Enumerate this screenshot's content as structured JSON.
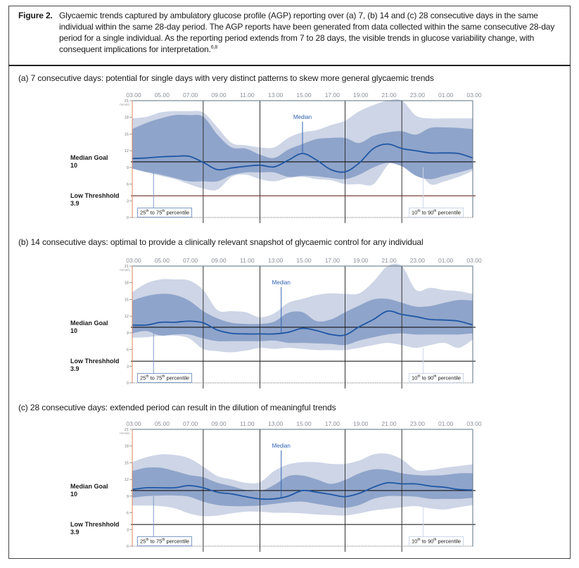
{
  "caption": {
    "label": "Figure 2.",
    "text": "Glycaemic trends captured by ambulatory glucose profile (AGP) reporting over (a) 7, (b) 14 and (c) 28 consecutive days in the same individual within the same 28-day period. The AGP reports have been generated from data collected within the same consecutive 28-day period for a single individual. As the reporting period extends from 7 to 28 days, the visible trends in glucose variability change, with consequent implications for interpretation.",
    "refs": "6,8"
  },
  "colors": {
    "band_10_90": "#cdd5e6",
    "band_25_75": "#8fa4ca",
    "median": "#1f57a4",
    "median_label": "#2f63b3",
    "left_axis": "#e0845c",
    "frame_axis": "#5a7080"
  },
  "chart_data": [
    {
      "type": "area",
      "title": "(a) 7 consecutive days: potential for single days with very distinct patterns to skew more general glycaemic trends",
      "x_ticks": [
        "03.00",
        "05.00",
        "07.00",
        "09.00",
        "11.00",
        "13.00",
        "15.00",
        "17.00",
        "19.00",
        "21.00",
        "23.00",
        "01.00",
        "03.00"
      ],
      "x": [
        "03.00",
        "04.00",
        "05.00",
        "06.00",
        "07.00",
        "08.00",
        "09.00",
        "10.00",
        "11.00",
        "12.00",
        "13.00",
        "14.00",
        "15.00",
        "16.00",
        "17.00",
        "18.00",
        "19.00",
        "20.00",
        "21.00",
        "22.00",
        "23.00",
        "00.00",
        "01.00",
        "02.00",
        "03.00"
      ],
      "y_unit": "mmol/L",
      "ylim": [
        0,
        21
      ],
      "y_ticks": [
        "21",
        "18",
        "15",
        "12",
        "9",
        "6",
        "3",
        "0"
      ],
      "vertical_lines": [
        "08.00",
        "12.00",
        "18.00",
        "22.00"
      ],
      "reference_lines": [
        {
          "label": "Median Goal",
          "value": "10"
        },
        {
          "label": "Low Threshhold",
          "value": "3.9"
        }
      ],
      "series": {
        "p10": [
          8.8,
          8.1,
          7.5,
          6.9,
          6.0,
          5.2,
          5.0,
          7.3,
          7.7,
          6.9,
          6.5,
          7.1,
          7.3,
          6.9,
          6.7,
          6.0,
          6.0,
          6.0,
          9.4,
          11.5,
          9.0,
          6.0,
          6.5,
          7.3,
          8.4
        ],
        "p25": [
          8.8,
          8.2,
          7.7,
          7.1,
          6.5,
          6.5,
          6.5,
          7.6,
          8.1,
          8.1,
          8.1,
          7.3,
          7.5,
          7.4,
          7.1,
          6.9,
          7.7,
          9.0,
          9.8,
          9.2,
          7.5,
          6.9,
          7.5,
          8.1,
          8.8
        ],
        "median": [
          10.6,
          10.7,
          10.9,
          11.0,
          11.0,
          9.9,
          8.6,
          8.9,
          9.2,
          9.4,
          9.1,
          10.3,
          11.5,
          10.3,
          8.6,
          8.2,
          9.8,
          12.4,
          13.2,
          12.4,
          12.0,
          11.6,
          11.6,
          11.5,
          10.7
        ],
        "p75": [
          15.9,
          17.0,
          17.8,
          18.4,
          18.4,
          18.1,
          14.9,
          12.6,
          12.4,
          11.3,
          10.7,
          12.2,
          13.2,
          14.1,
          14.3,
          14.3,
          13.4,
          14.7,
          15.3,
          15.5,
          14.9,
          16.1,
          16.2,
          16.1,
          15.9
        ],
        "p90": [
          17.8,
          18.1,
          18.9,
          19.1,
          19.1,
          18.9,
          16.2,
          13.4,
          13.0,
          12.6,
          12.6,
          14.3,
          15.3,
          15.7,
          16.6,
          17.4,
          19.1,
          20.2,
          21,
          21,
          18.3,
          17.8,
          17.8,
          17.8,
          17.8
        ]
      },
      "low_line_color": "#6b2a1e",
      "annotations": {
        "median": "Median",
        "median_at": 12,
        "band_25_75": {
          "a": "25",
          "b": "th",
          "c": " to 75",
          "d": "th",
          "e": " percentile"
        },
        "band_10_90": {
          "a": "10",
          "b": "th",
          "c": " to 90",
          "d": "th",
          "e": " percentile"
        }
      }
    },
    {
      "type": "area",
      "title": "(b) 14 consecutive days: optimal to provide a clinically relevant snapshot of glycaemic control for any individual",
      "x_ticks": [
        "03.00",
        "05.00",
        "07.00",
        "09.00",
        "11.00",
        "13.00",
        "15.00",
        "17.00",
        "19.00",
        "21.00",
        "23.00",
        "01.00",
        "03.00"
      ],
      "x": [
        "03.00",
        "04.00",
        "05.00",
        "06.00",
        "07.00",
        "08.00",
        "09.00",
        "10.00",
        "11.00",
        "12.00",
        "13.00",
        "14.00",
        "15.00",
        "16.00",
        "17.00",
        "18.00",
        "19.00",
        "20.00",
        "21.00",
        "22.00",
        "23.00",
        "00.00",
        "01.00",
        "02.00",
        "03.00"
      ],
      "y_unit": "mmol/L",
      "ylim": [
        0,
        21
      ],
      "y_ticks": [
        "21",
        "18",
        "15",
        "12",
        "9",
        "6",
        "3",
        "0"
      ],
      "vertical_lines": [
        "08.00",
        "12.00",
        "18.00",
        "22.00"
      ],
      "reference_lines": [
        {
          "label": "Median Goal",
          "value": "10"
        },
        {
          "label": "Low Threshhold",
          "value": "3.9"
        }
      ],
      "series": {
        "p10": [
          8.1,
          8.2,
          8.5,
          8.5,
          8.0,
          6.1,
          5.7,
          5.5,
          5.8,
          6.3,
          6.1,
          6.3,
          6.1,
          5.9,
          5.9,
          5.9,
          6.3,
          6.8,
          7.2,
          6.8,
          6.3,
          6.8,
          7.2,
          6.3,
          7.8
        ],
        "p25": [
          8.9,
          9.3,
          8.5,
          8.7,
          8.7,
          8.0,
          7.5,
          7.5,
          7.5,
          7.5,
          7.6,
          7.2,
          7.2,
          7.1,
          7.0,
          6.8,
          7.6,
          8.2,
          8.7,
          8.9,
          8.7,
          8.7,
          8.7,
          8.7,
          8.9
        ],
        "median": [
          10.4,
          10.4,
          10.9,
          10.9,
          11.1,
          10.8,
          9.5,
          8.9,
          8.8,
          8.8,
          8.8,
          9.1,
          9.8,
          9.4,
          8.7,
          8.6,
          10.1,
          11.4,
          12.9,
          12.3,
          11.9,
          11.4,
          11.3,
          11.1,
          10.4
        ],
        "p75": [
          14.8,
          15.6,
          16.0,
          15.8,
          14.8,
          12.9,
          11.6,
          10.8,
          10.6,
          10.6,
          11.0,
          12.6,
          12.7,
          11.1,
          11.4,
          12.7,
          13.9,
          15.0,
          15.1,
          14.4,
          13.7,
          13.8,
          14.4,
          14.9,
          14.8
        ],
        "p90": [
          16.3,
          17.9,
          18.6,
          18.6,
          18.4,
          16.7,
          13.1,
          12.9,
          12.7,
          11.8,
          12.5,
          14.4,
          15.1,
          15.8,
          16.1,
          16.0,
          16.1,
          18.2,
          21,
          21,
          16.7,
          17.1,
          16.7,
          16.5,
          16.0
        ]
      },
      "low_line_color": "#222222",
      "annotations": {
        "median": "Median",
        "median_at": 10.5,
        "band_25_75": {
          "a": "25",
          "b": "th",
          "c": " to 75",
          "d": "th",
          "e": " percentile"
        },
        "band_10_90": {
          "a": "10",
          "b": "th",
          "c": " to 90",
          "d": "th",
          "e": " percentile"
        }
      }
    },
    {
      "type": "area",
      "title": "(c) 28 consecutive days: extended period can result in the dilution of meaningful trends",
      "x_ticks": [
        "03.00",
        "05.00",
        "07.00",
        "09.00",
        "11.00",
        "13.00",
        "15.00",
        "17.00",
        "19.00",
        "21.00",
        "23.00",
        "01.00",
        "03.00"
      ],
      "x": [
        "03.00",
        "04.00",
        "05.00",
        "06.00",
        "07.00",
        "08.00",
        "09.00",
        "10.00",
        "11.00",
        "12.00",
        "13.00",
        "14.00",
        "15.00",
        "16.00",
        "17.00",
        "18.00",
        "19.00",
        "20.00",
        "21.00",
        "22.00",
        "23.00",
        "00.00",
        "01.00",
        "02.00",
        "03.00"
      ],
      "y_unit": "mmol/L",
      "ylim": [
        0,
        21
      ],
      "y_ticks": [
        "21",
        "18",
        "15",
        "12",
        "9",
        "6",
        "3",
        "0"
      ],
      "vertical_lines": [
        "08.00",
        "12.00",
        "18.00",
        "22.00"
      ],
      "reference_lines": [
        {
          "label": "Median Goal",
          "value": "10"
        },
        {
          "label": "Low Threshhold",
          "value": "3.9"
        }
      ],
      "series": {
        "p10": [
          7.3,
          7.3,
          7.2,
          6.8,
          5.9,
          5.4,
          5.5,
          5.9,
          6.2,
          6.2,
          6.0,
          6.0,
          5.9,
          5.7,
          5.6,
          5.5,
          5.9,
          6.4,
          6.7,
          7.0,
          7.2,
          6.8,
          6.6,
          7.0,
          7.4
        ],
        "p25": [
          8.7,
          9.0,
          9.1,
          9.1,
          8.9,
          8.0,
          7.4,
          7.2,
          7.2,
          7.3,
          7.6,
          7.9,
          8.0,
          7.6,
          7.2,
          6.9,
          7.4,
          8.5,
          9.0,
          9.0,
          8.9,
          8.5,
          8.5,
          8.5,
          8.7
        ],
        "median": [
          10.2,
          10.5,
          10.5,
          10.5,
          10.9,
          10.5,
          9.7,
          9.4,
          8.9,
          8.5,
          8.5,
          9.0,
          10.0,
          9.7,
          9.3,
          8.9,
          9.5,
          10.6,
          11.4,
          11.2,
          11.2,
          10.8,
          10.6,
          10.2,
          10.1
        ],
        "p75": [
          13.5,
          14.1,
          14.1,
          13.5,
          12.8,
          12.4,
          11.4,
          10.8,
          10.1,
          9.9,
          11.0,
          12.6,
          12.7,
          12.0,
          11.2,
          11.9,
          13.1,
          13.8,
          13.7,
          13.1,
          12.8,
          12.7,
          12.8,
          13.1,
          13.1
        ],
        "p90": [
          15.1,
          16.0,
          16.5,
          16.4,
          15.8,
          14.3,
          12.6,
          12.0,
          11.4,
          11.5,
          13.5,
          14.7,
          15.1,
          15.1,
          14.8,
          14.8,
          15.4,
          16.5,
          16.6,
          15.6,
          13.7,
          13.7,
          14.1,
          14.4,
          14.7
        ]
      },
      "low_line_color": "#222222",
      "annotations": {
        "median": "Median",
        "median_at": 10.5,
        "band_25_75": {
          "a": "25",
          "b": "th",
          "c": " to 75",
          "d": "th",
          "e": " percentile"
        },
        "band_10_90": {
          "a": "10",
          "b": "th",
          "c": " to 90",
          "d": "th",
          "e": " percentile"
        }
      }
    }
  ]
}
